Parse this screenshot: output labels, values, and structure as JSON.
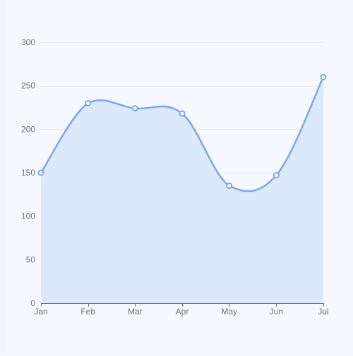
{
  "chart_data": {
    "type": "area",
    "categories": [
      "Jan",
      "Feb",
      "Mar",
      "Apr",
      "May",
      "Jun",
      "Jul"
    ],
    "series": [
      {
        "values": [
          150,
          230,
          224,
          218,
          135,
          147,
          260
        ]
      }
    ],
    "y_ticks": [
      "0",
      "50",
      "100",
      "150",
      "200",
      "250",
      "300"
    ],
    "ylim": [
      0,
      300
    ],
    "smooth": true,
    "grid": "horizontal",
    "colors": {
      "line": "#7aa8e8",
      "area": "#dce9fb",
      "grid": "#e6ebf3",
      "axis": "#6e7079",
      "point_fill": "#ffffff"
    }
  }
}
